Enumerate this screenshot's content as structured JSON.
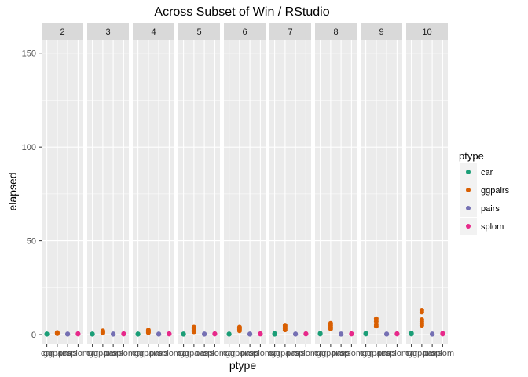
{
  "chart_data": {
    "type": "scatter",
    "title": "Across Subset of Win / RStudio",
    "xlabel": "ptype",
    "ylabel": "elapsed",
    "ylim": [
      -5,
      157
    ],
    "y_ticks": [
      0,
      50,
      100,
      150
    ],
    "categories": [
      "car",
      "ggpairs",
      "pairs",
      "splom"
    ],
    "facet_labels": [
      "2",
      "3",
      "4",
      "5",
      "6",
      "7",
      "8",
      "9",
      "10"
    ],
    "legend": {
      "title": "ptype",
      "placement": "right",
      "entries": [
        "car",
        "ggpairs",
        "pairs",
        "splom"
      ]
    },
    "colors": {
      "car": "#1b9e77",
      "ggpairs": "#d95f02",
      "pairs": "#7570b3",
      "splom": "#e7298a",
      "panel_bg": "#ebebeb",
      "strip_bg": "#d9d9d9",
      "grid": "#ffffff"
    },
    "grid": true,
    "facets": [
      {
        "facet": "2",
        "points": {
          "car": [
            0.2,
            0.3,
            0.4
          ],
          "ggpairs": [
            0.5,
            0.7,
            0.9,
            1.1
          ],
          "pairs": [
            0.2,
            0.3,
            0.4
          ],
          "splom": [
            0.3,
            0.4,
            0.5
          ]
        }
      },
      {
        "facet": "3",
        "points": {
          "car": [
            0.2,
            0.3,
            0.4
          ],
          "ggpairs": [
            0.8,
            1.2,
            1.6,
            2.0
          ],
          "pairs": [
            0.2,
            0.3,
            0.4
          ],
          "splom": [
            0.3,
            0.4,
            0.5
          ]
        }
      },
      {
        "facet": "4",
        "points": {
          "car": [
            0.2,
            0.3,
            0.4
          ],
          "ggpairs": [
            1.0,
            1.5,
            2.0,
            2.5
          ],
          "pairs": [
            0.2,
            0.3,
            0.4
          ],
          "splom": [
            0.3,
            0.4,
            0.5
          ]
        }
      },
      {
        "facet": "5",
        "points": {
          "car": [
            0.2,
            0.3,
            0.4
          ],
          "ggpairs": [
            1.5,
            2.5,
            3.2,
            4.0
          ],
          "pairs": [
            0.2,
            0.3,
            0.4
          ],
          "splom": [
            0.3,
            0.4,
            0.5
          ]
        }
      },
      {
        "facet": "6",
        "points": {
          "car": [
            0.2,
            0.3,
            0.4
          ],
          "ggpairs": [
            2.0,
            2.8,
            3.5,
            4.0
          ],
          "pairs": [
            0.2,
            0.3,
            0.4
          ],
          "splom": [
            0.3,
            0.4,
            0.5
          ]
        }
      },
      {
        "facet": "7",
        "points": {
          "car": [
            0.2,
            0.4,
            0.6
          ],
          "ggpairs": [
            2.5,
            3.3,
            4.2,
            5.0
          ],
          "pairs": [
            0.2,
            0.3,
            0.4
          ],
          "splom": [
            0.3,
            0.4,
            0.5
          ]
        }
      },
      {
        "facet": "8",
        "points": {
          "car": [
            0.3,
            0.5,
            0.7
          ],
          "ggpairs": [
            3.0,
            4.0,
            5.0,
            6.0
          ],
          "pairs": [
            0.2,
            0.3,
            0.4
          ],
          "splom": [
            0.3,
            0.4,
            0.5
          ]
        }
      },
      {
        "facet": "9",
        "points": {
          "car": [
            0.3,
            0.5,
            0.7
          ],
          "ggpairs": [
            4.5,
            5.5,
            7.0,
            8.5
          ],
          "pairs": [
            0.2,
            0.3,
            0.4
          ],
          "splom": [
            0.3,
            0.4,
            0.5
          ]
        }
      },
      {
        "facet": "10",
        "points": {
          "car": [
            0.3,
            0.6,
            0.8
          ],
          "ggpairs": [
            5.0,
            6.0,
            7.0,
            8.0,
            12.0,
            13.0
          ],
          "pairs": [
            0.2,
            0.3,
            0.4
          ],
          "splom": [
            0.3,
            0.5,
            0.7
          ]
        }
      }
    ]
  }
}
